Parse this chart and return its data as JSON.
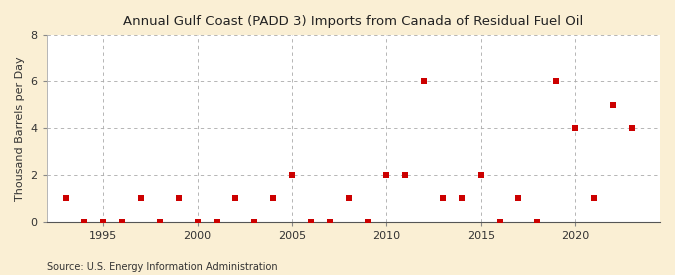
{
  "title": "Annual Gulf Coast (PADD 3) Imports from Canada of Residual Fuel Oil",
  "ylabel": "Thousand Barrels per Day",
  "source": "Source: U.S. Energy Information Administration",
  "figure_bg_color": "#faefd4",
  "axes_bg_color": "#ffffff",
  "marker_color": "#cc0000",
  "grid_color": "#aaaaaa",
  "grid_style": "--",
  "ylim": [
    0,
    8
  ],
  "yticks": [
    0,
    2,
    4,
    6,
    8
  ],
  "years": [
    1993,
    1994,
    1995,
    1996,
    1997,
    1998,
    1999,
    2000,
    2001,
    2002,
    2003,
    2004,
    2005,
    2006,
    2007,
    2008,
    2009,
    2010,
    2011,
    2012,
    2013,
    2014,
    2015,
    2016,
    2017,
    2018,
    2019,
    2020,
    2021,
    2022,
    2023
  ],
  "values": [
    1,
    0,
    0,
    0,
    1,
    0,
    1,
    0,
    0,
    1,
    0,
    1,
    2,
    0,
    0,
    1,
    0,
    2,
    2,
    6,
    1,
    1,
    2,
    0,
    1,
    0,
    6,
    4,
    1,
    5,
    4
  ],
  "xlim": [
    1992.0,
    2024.5
  ],
  "xticks": [
    1995,
    2000,
    2005,
    2010,
    2015,
    2020
  ],
  "title_fontsize": 9.5,
  "ylabel_fontsize": 8,
  "tick_fontsize": 8,
  "source_fontsize": 7,
  "marker_size": 18
}
